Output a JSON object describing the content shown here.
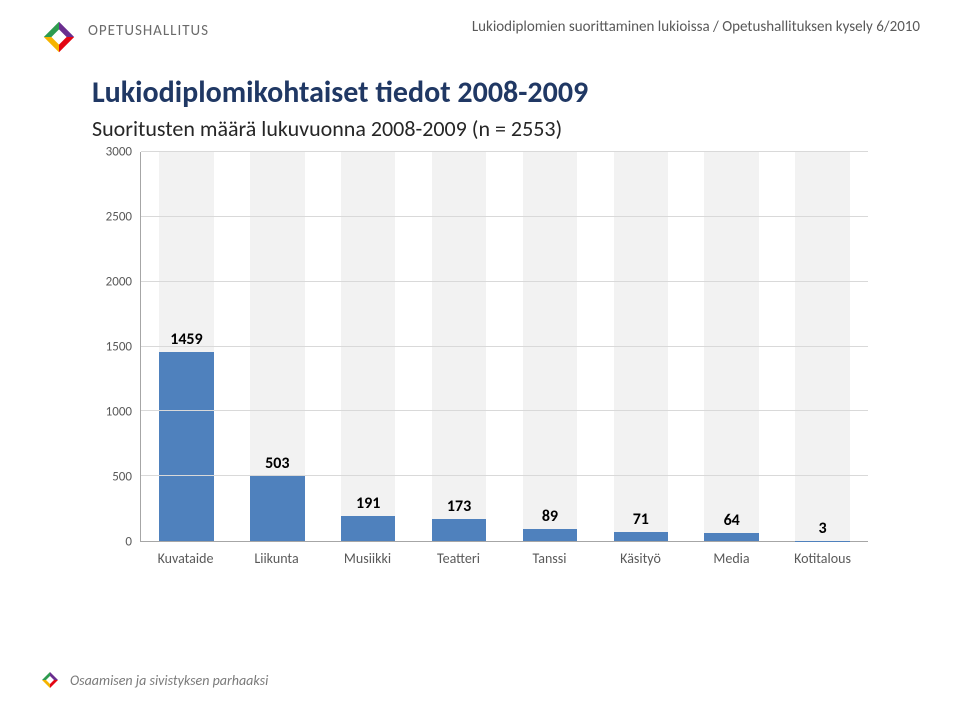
{
  "header": {
    "wordmark": "OPETUSHALLITUS",
    "top_caption": "Lukiodiplomien suorittaminen lukioissa / Opetushallituksen kysely 6/2010"
  },
  "titles": {
    "main": "Lukiodiplomikohtaiset tiedot 2008-2009",
    "sub": "Suoritusten määrä lukuvuonna 2008-2009 (n = 2553)"
  },
  "chart": {
    "type": "bar",
    "ylim": [
      0,
      3000
    ],
    "ytick_step": 500,
    "yticks": [
      0,
      500,
      1000,
      1500,
      2000,
      2500,
      3000
    ],
    "grid_color": "#d9d9d9",
    "axis_color": "#a6a6a6",
    "bar_bg_color": "#f2f2f2",
    "bar_color": "#4f81bd",
    "label_color": "#595959",
    "value_label_color": "#000000",
    "value_label_fontsize": 16,
    "value_label_weight": "700",
    "tick_fontsize": 13,
    "xlabel_fontsize": 14,
    "bar_width_pct": 60,
    "categories": [
      "Kuvataide",
      "Liikunta",
      "Musiikki",
      "Teatteri",
      "Tanssi",
      "Käsityö",
      "Media",
      "Kotitalous"
    ],
    "values": [
      1459,
      503,
      191,
      173,
      89,
      71,
      64,
      3
    ]
  },
  "footer": {
    "text": "Osaamisen ja sivistyksen parhaaksi"
  },
  "logo_colors": {
    "tl": "#2e9b4f",
    "tr": "#6a2e8f",
    "br": "#e30613",
    "bl": "#f5b400",
    "center": "#ffffff"
  }
}
